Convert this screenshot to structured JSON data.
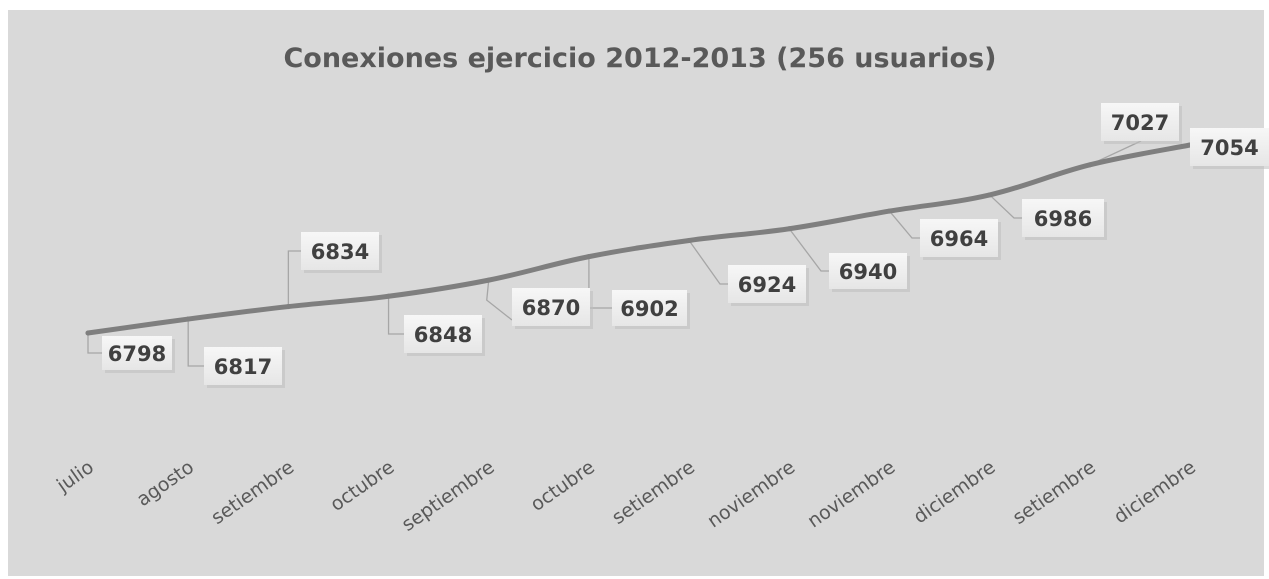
{
  "chart_data": {
    "type": "line",
    "title": "Conexiones ejercicio 2012-2013 (256 usuarios)",
    "categories": [
      "julio",
      "agosto",
      "setiembre",
      "octubre",
      "septiembre",
      "octubre",
      "setiembre",
      "noviembre",
      "noviembre",
      "diciembre",
      "setiembre",
      "diciembre"
    ],
    "series": [
      {
        "values": [
          6798,
          6817,
          6834,
          6848,
          6870,
          6902,
          6924,
          6940,
          6964,
          6986,
          7027,
          7054
        ]
      }
    ],
    "data_labels": [
      "6798",
      "6817",
      "6834",
      "6848",
      "6870",
      "6902",
      "6924",
      "6940",
      "6964",
      "6986",
      "7027",
      "7054"
    ],
    "xlabel": "",
    "ylabel": "",
    "grid": false,
    "legend": "none",
    "colors": {
      "background": "#d9d9d9",
      "line": "#7f7f7f",
      "title": "#595959",
      "label_box": "#f2f2f2",
      "leader": "#a6a6a6"
    }
  }
}
